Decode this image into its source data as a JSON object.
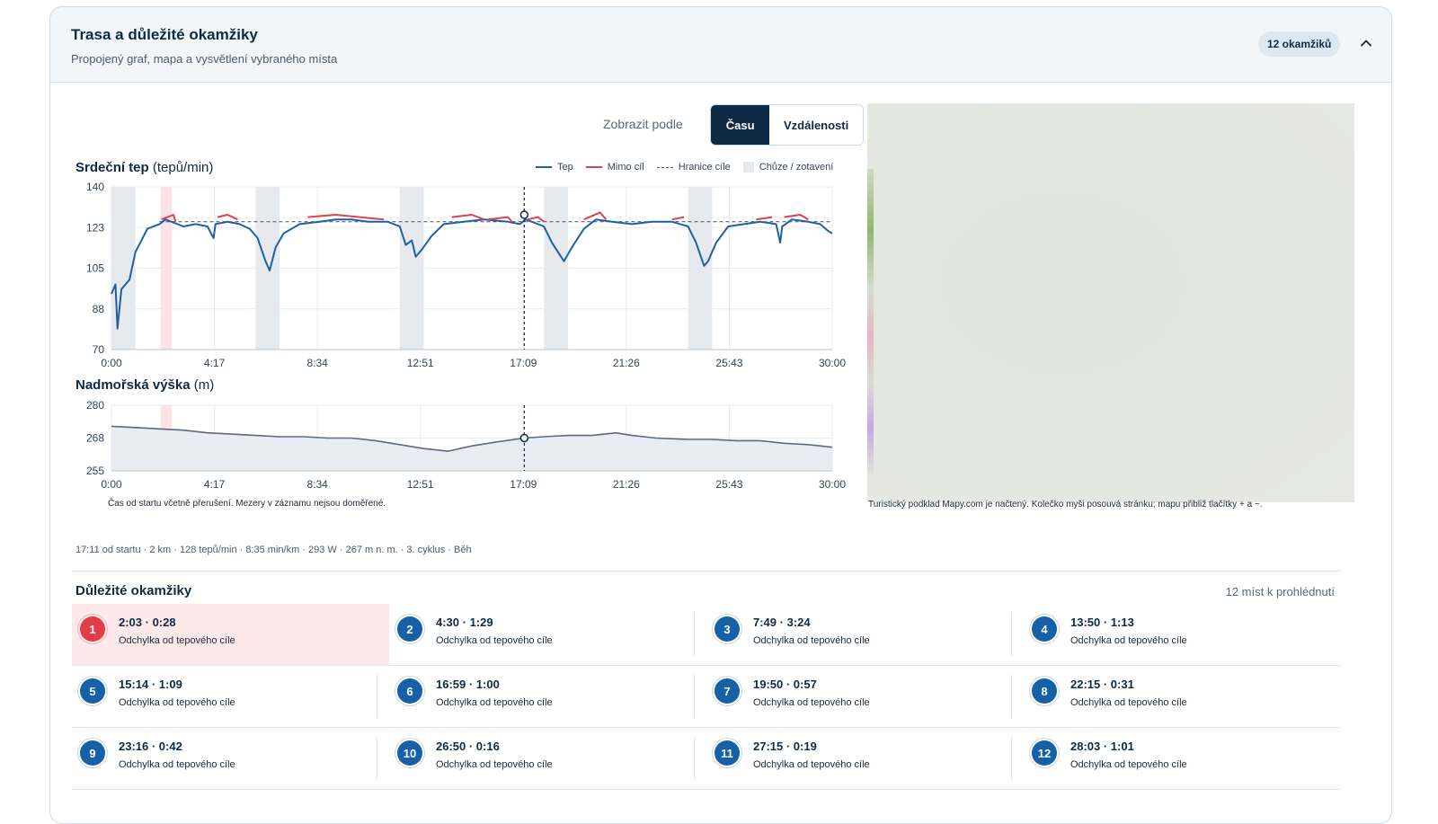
{
  "header": {
    "title": "Trasa a důležité okamžiky",
    "subtitle": "Propojený graf, mapa a vysvětlení vybraného místa",
    "badge": "12 okamžiků"
  },
  "toggle": {
    "label": "Zobrazit podle",
    "options": [
      "Času",
      "Vzdálenosti"
    ],
    "selected": "Času"
  },
  "hr_chart": {
    "title": "Srdeční tep",
    "unit": "(tepů/min)",
    "legend": {
      "tep": "Tep",
      "mimo": "Mimo cíl",
      "hranice": "Hranice cíle",
      "chuze": "Chůze / zotavení"
    }
  },
  "alt_chart": {
    "title": "Nadmořská výška",
    "unit": "(m)"
  },
  "chart_data": [
    {
      "type": "line",
      "title": "Srdeční tep (tepů/min)",
      "xlabel": "",
      "ylabel": "",
      "xlim": [
        0,
        1800
      ],
      "ylim": [
        70,
        140
      ],
      "x_ticks": [
        "0:00",
        "4:17",
        "8:34",
        "12:51",
        "17:09",
        "21:26",
        "25:43",
        "30:00"
      ],
      "y_ticks": [
        "140",
        "123",
        "105",
        "88",
        "70"
      ],
      "legend": [
        "Tep",
        "Mimo cíl",
        "Hranice cíle",
        "Chůze / zotavení"
      ],
      "legend_position": "top-right",
      "grid": true,
      "target_limit": 125,
      "cursor_x": 1031,
      "colors": {
        "tep": "#1f5fa6",
        "mimo": "#e0404f",
        "hranice": "#445566",
        "chuze": "#e6eaef"
      },
      "walk_intervals": [
        [
          0,
          60
        ],
        [
          360,
          420
        ],
        [
          720,
          780
        ],
        [
          1080,
          1140
        ],
        [
          1440,
          1500
        ]
      ],
      "highlight_interval": [
        123,
        151
      ],
      "series": [
        {
          "name": "Tep",
          "points": [
            [
              0,
              94
            ],
            [
              10,
              98
            ],
            [
              15,
              79
            ],
            [
              25,
              96
            ],
            [
              45,
              100
            ],
            [
              60,
              112
            ],
            [
              90,
              122
            ],
            [
              120,
              124
            ],
            [
              135,
              126
            ],
            [
              150,
              125
            ],
            [
              180,
              123
            ],
            [
              210,
              124
            ],
            [
              240,
              123
            ],
            [
              255,
              118
            ],
            [
              260,
              124
            ],
            [
              290,
              125
            ],
            [
              320,
              124
            ],
            [
              345,
              122
            ],
            [
              365,
              118
            ],
            [
              385,
              108
            ],
            [
              395,
              104
            ],
            [
              410,
              114
            ],
            [
              430,
              120
            ],
            [
              470,
              124
            ],
            [
              520,
              125
            ],
            [
              560,
              126
            ],
            [
              600,
              126
            ],
            [
              640,
              125
            ],
            [
              690,
              125
            ],
            [
              720,
              123
            ],
            [
              735,
              115
            ],
            [
              750,
              117
            ],
            [
              760,
              110
            ],
            [
              775,
              113
            ],
            [
              800,
              119
            ],
            [
              830,
              124
            ],
            [
              880,
              125
            ],
            [
              930,
              126
            ],
            [
              990,
              125
            ],
            [
              1020,
              124
            ],
            [
              1035,
              126
            ],
            [
              1050,
              125
            ],
            [
              1080,
              123
            ],
            [
              1100,
              116
            ],
            [
              1130,
              108
            ],
            [
              1150,
              114
            ],
            [
              1180,
              122
            ],
            [
              1210,
              126
            ],
            [
              1250,
              125
            ],
            [
              1300,
              124
            ],
            [
              1350,
              125
            ],
            [
              1400,
              125
            ],
            [
              1440,
              123
            ],
            [
              1460,
              116
            ],
            [
              1480,
              106
            ],
            [
              1490,
              108
            ],
            [
              1510,
              116
            ],
            [
              1540,
              123
            ],
            [
              1580,
              124
            ],
            [
              1620,
              125
            ],
            [
              1660,
              124
            ],
            [
              1670,
              116
            ],
            [
              1675,
              123
            ],
            [
              1700,
              126
            ],
            [
              1740,
              125
            ],
            [
              1770,
              124
            ],
            [
              1790,
              121
            ],
            [
              1800,
              120
            ]
          ]
        },
        {
          "name": "Mimo cíl",
          "segments": [
            [
              [
                125,
                126
              ],
              [
                155,
                128
              ],
              [
                160,
                125
              ]
            ],
            [
              [
                265,
                127
              ],
              [
                290,
                128
              ],
              [
                315,
                126
              ]
            ],
            [
              [
                490,
                127
              ],
              [
                560,
                128
              ],
              [
                620,
                127
              ],
              [
                680,
                126
              ]
            ],
            [
              [
                850,
                127
              ],
              [
                900,
                128
              ],
              [
                930,
                126
              ]
            ],
            [
              [
                940,
                126
              ],
              [
                990,
                127
              ],
              [
                1000,
                125
              ]
            ],
            [
              [
                1040,
                126
              ],
              [
                1065,
                127
              ],
              [
                1080,
                125
              ]
            ],
            [
              [
                1180,
                126
              ],
              [
                1220,
                129
              ],
              [
                1235,
                126
              ]
            ],
            [
              [
                1400,
                126
              ],
              [
                1430,
                127
              ]
            ],
            [
              [
                1610,
                126
              ],
              [
                1650,
                127
              ]
            ],
            [
              [
                1680,
                127
              ],
              [
                1720,
                128
              ],
              [
                1740,
                126
              ]
            ]
          ]
        }
      ]
    },
    {
      "type": "area",
      "title": "Nadmořská výška (m)",
      "xlim": [
        0,
        1800
      ],
      "ylim": [
        255,
        280
      ],
      "x_ticks": [
        "0:00",
        "4:17",
        "8:34",
        "12:51",
        "17:09",
        "21:26",
        "25:43",
        "30:00"
      ],
      "y_ticks": [
        "280",
        "268",
        "255"
      ],
      "cursor_x": 1031,
      "series": [
        {
          "name": "",
          "points": [
            [
              0,
              272
            ],
            [
              60,
              271.5
            ],
            [
              120,
              271
            ],
            [
              180,
              270.5
            ],
            [
              240,
              269.5
            ],
            [
              300,
              269
            ],
            [
              360,
              268.5
            ],
            [
              420,
              268
            ],
            [
              480,
              268
            ],
            [
              540,
              267.5
            ],
            [
              600,
              267.5
            ],
            [
              660,
              266.5
            ],
            [
              720,
              265
            ],
            [
              780,
              263.5
            ],
            [
              840,
              262.5
            ],
            [
              900,
              264.5
            ],
            [
              960,
              266
            ],
            [
              1031,
              267.5
            ],
            [
              1080,
              268
            ],
            [
              1140,
              268.5
            ],
            [
              1200,
              268.5
            ],
            [
              1260,
              269.5
            ],
            [
              1300,
              268.5
            ],
            [
              1360,
              267.5
            ],
            [
              1440,
              267
            ],
            [
              1500,
              267
            ],
            [
              1560,
              266.5
            ],
            [
              1620,
              266.5
            ],
            [
              1680,
              265.5
            ],
            [
              1740,
              265
            ],
            [
              1800,
              264
            ]
          ]
        }
      ]
    }
  ],
  "chart_note": "Čas od startu včetně přerušení. Mezery v záznamu nejsou doměřené.",
  "map_note": "Turistický podklad Mapy.com je načtený. Kolečko myši posouvá stránku; mapu přibliž tlačítky + a −.",
  "selected_stats": "17:11 od startu · 2 km · 128 tepů/min · 8:35 min/km · 293 W · 267 m n. m. · 3. cyklus · Běh",
  "moments": {
    "title": "Důležité okamžiky",
    "count": "12 míst k prohlédnutí",
    "items": [
      {
        "num": "1",
        "time": "2:03 · 0:28",
        "desc": "Odchylka od tepového cíle"
      },
      {
        "num": "2",
        "time": "4:30 · 1:29",
        "desc": "Odchylka od tepového cíle"
      },
      {
        "num": "3",
        "time": "7:49 · 3:24",
        "desc": "Odchylka od tepového cíle"
      },
      {
        "num": "4",
        "time": "13:50 · 1:13",
        "desc": "Odchylka od tepového cíle"
      },
      {
        "num": "5",
        "time": "15:14 · 1:09",
        "desc": "Odchylka od tepového cíle"
      },
      {
        "num": "6",
        "time": "16:59 · 1:00",
        "desc": "Odchylka od tepového cíle"
      },
      {
        "num": "7",
        "time": "19:50 · 0:57",
        "desc": "Odchylka od tepového cíle"
      },
      {
        "num": "8",
        "time": "22:15 · 0:31",
        "desc": "Odchylka od tepového cíle"
      },
      {
        "num": "9",
        "time": "23:16 · 0:42",
        "desc": "Odchylka od tepového cíle"
      },
      {
        "num": "10",
        "time": "26:50 · 0:16",
        "desc": "Odchylka od tepového cíle"
      },
      {
        "num": "11",
        "time": "27:15 · 0:19",
        "desc": "Odchylka od tepového cíle"
      },
      {
        "num": "12",
        "time": "28:03 · 1:01",
        "desc": "Odchylka od tepového cíle"
      }
    ],
    "selected_index": 0
  }
}
